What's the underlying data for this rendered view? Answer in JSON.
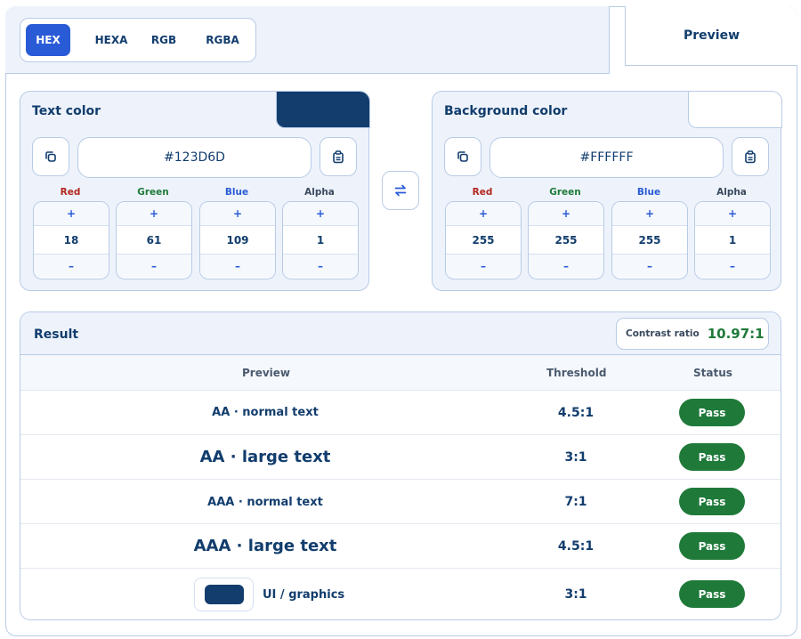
{
  "formats": [
    "HEX",
    "HEXA",
    "RGB",
    "RGBA"
  ],
  "active_format": "HEX",
  "preview_tab": "Preview",
  "text_color": {
    "title": "Text color",
    "hex": "#123D6D",
    "swatch": "#123D6D",
    "channels": [
      {
        "label": "Red",
        "value": "18",
        "color": "#b3261e"
      },
      {
        "label": "Green",
        "value": "61",
        "color": "#1f7a3a"
      },
      {
        "label": "Blue",
        "value": "109",
        "color": "#2a5bd7"
      },
      {
        "label": "Alpha",
        "value": "1",
        "color": "#3a4a5e"
      }
    ]
  },
  "background_color": {
    "title": "Background color",
    "hex": "#FFFFFF",
    "swatch": "#FFFFFF",
    "channels": [
      {
        "label": "Red",
        "value": "255",
        "color": "#b3261e"
      },
      {
        "label": "Green",
        "value": "255",
        "color": "#1f7a3a"
      },
      {
        "label": "Blue",
        "value": "255",
        "color": "#2a5bd7"
      },
      {
        "label": "Alpha",
        "value": "1",
        "color": "#3a4a5e"
      }
    ]
  },
  "stepper": {
    "plus": "+",
    "minus": "–"
  },
  "result": {
    "title": "Result",
    "contrast_label": "Contrast ratio",
    "contrast_value": "10.97:1",
    "columns": {
      "preview": "Preview",
      "threshold": "Threshold",
      "status": "Status"
    },
    "rows": [
      {
        "preview": "AA · normal text",
        "threshold": "4.5:1",
        "status": "Pass"
      },
      {
        "preview": "AA · large text",
        "threshold": "3:1",
        "status": "Pass"
      },
      {
        "preview": "AAA · normal text",
        "threshold": "7:1",
        "status": "Pass"
      },
      {
        "preview": "AAA · large text",
        "threshold": "4.5:1",
        "status": "Pass"
      },
      {
        "preview": "UI / graphics",
        "threshold": "3:1",
        "status": "Pass"
      }
    ]
  },
  "icons": {
    "copy": "copy-icon",
    "paste": "clipboard-icon",
    "swap": "swap-icon"
  },
  "colors": {
    "accent": "#2a5bd7",
    "pass": "#1f7a3a",
    "border": "#b8cbe6",
    "panel": "#eef3fb"
  }
}
